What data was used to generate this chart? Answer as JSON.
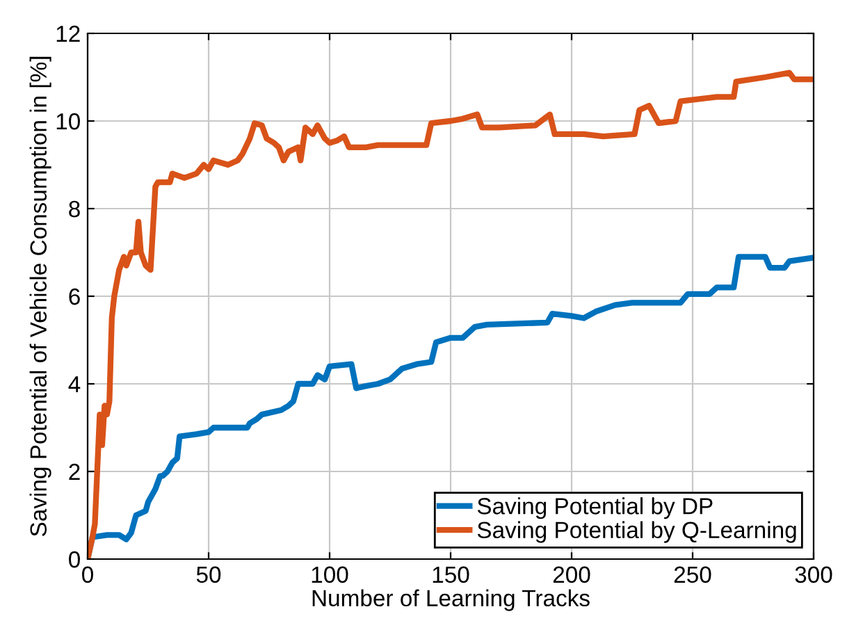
{
  "chart_data": {
    "type": "line",
    "xlabel": "Number of Learning Tracks",
    "ylabel": "Saving Potential of Vehicle Consumption in [%]",
    "xlim": [
      0,
      300
    ],
    "xticks": [
      0,
      50,
      100,
      150,
      200,
      250,
      300
    ],
    "ylim": [
      0,
      12
    ],
    "yticks": [
      0,
      2,
      4,
      6,
      8,
      10,
      12
    ],
    "grid": true,
    "legend": "bottom right",
    "series": [
      {
        "name": "Saving Potential by DP",
        "color": "#0072bd",
        "x": [
          0,
          2,
          8,
          13,
          16,
          18,
          20,
          24,
          25,
          28,
          30,
          31,
          33,
          35,
          37,
          38,
          45,
          50,
          52,
          60,
          66,
          67,
          70,
          72,
          80,
          83,
          85,
          87,
          93,
          95,
          98,
          100,
          109,
          111,
          115,
          120,
          125,
          130,
          136,
          142,
          144,
          150,
          155,
          160,
          165,
          190,
          192,
          200,
          205,
          210,
          218,
          225,
          245,
          248,
          257,
          260,
          267,
          269,
          280,
          282,
          288,
          290,
          300
        ],
        "values": [
          0,
          0.5,
          0.55,
          0.55,
          0.45,
          0.6,
          1.0,
          1.1,
          1.3,
          1.6,
          1.9,
          1.9,
          2.0,
          2.2,
          2.3,
          2.8,
          2.85,
          2.9,
          3.0,
          3.0,
          3.0,
          3.1,
          3.2,
          3.3,
          3.4,
          3.5,
          3.6,
          4.0,
          4.0,
          4.2,
          4.1,
          4.4,
          4.45,
          3.9,
          3.95,
          4.0,
          4.1,
          4.35,
          4.45,
          4.5,
          4.95,
          5.05,
          5.05,
          5.3,
          5.35,
          5.4,
          5.6,
          5.55,
          5.5,
          5.65,
          5.8,
          5.85,
          5.85,
          6.05,
          6.05,
          6.2,
          6.2,
          6.9,
          6.9,
          6.65,
          6.65,
          6.8,
          6.88
        ]
      },
      {
        "name": "Saving Potential by Q-Learning",
        "color": "#d95319",
        "x": [
          0,
          2,
          3,
          5,
          6,
          7,
          8,
          9,
          10,
          11,
          13,
          15,
          16,
          18,
          20,
          21,
          22,
          24,
          26,
          28,
          29,
          34,
          35,
          40,
          45,
          48,
          50,
          52,
          58,
          62,
          64,
          67,
          69,
          72,
          74,
          77,
          79,
          81,
          83,
          87,
          88,
          90,
          93,
          95,
          98,
          100,
          103,
          106,
          108,
          115,
          120,
          140,
          142,
          150,
          155,
          161,
          163,
          170,
          185,
          191,
          193,
          205,
          213,
          226,
          228,
          232,
          236,
          243,
          245,
          260,
          267,
          268,
          280,
          290,
          292,
          300
        ],
        "values": [
          0,
          0.5,
          0.8,
          3.3,
          2.6,
          3.5,
          3.3,
          3.6,
          5.5,
          6.0,
          6.6,
          6.9,
          6.7,
          7.0,
          7.0,
          7.7,
          7.0,
          6.7,
          6.6,
          8.5,
          8.6,
          8.6,
          8.8,
          8.7,
          8.8,
          9.0,
          8.9,
          9.1,
          9.0,
          9.1,
          9.25,
          9.6,
          9.95,
          9.9,
          9.6,
          9.5,
          9.4,
          9.1,
          9.3,
          9.4,
          9.1,
          9.85,
          9.7,
          9.9,
          9.6,
          9.5,
          9.55,
          9.65,
          9.4,
          9.4,
          9.45,
          9.45,
          9.95,
          10.0,
          10.05,
          10.15,
          9.85,
          9.85,
          9.9,
          10.15,
          9.7,
          9.7,
          9.65,
          9.7,
          10.25,
          10.35,
          9.95,
          10.0,
          10.45,
          10.55,
          10.55,
          10.9,
          11.0,
          11.1,
          10.95,
          10.95
        ]
      }
    ]
  }
}
